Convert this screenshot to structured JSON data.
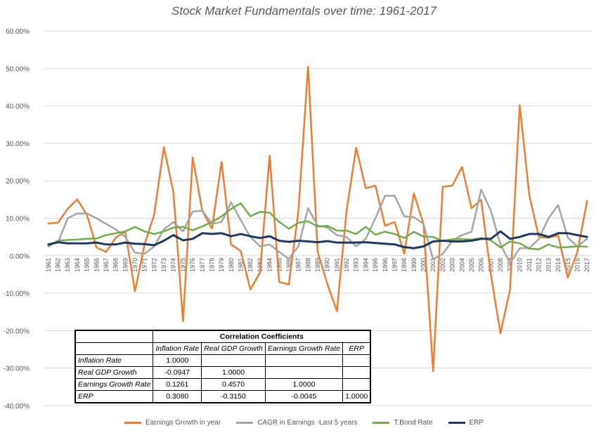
{
  "chart_data": {
    "type": "line",
    "title": "Stock Market Fundamentals over time: 1961-2017",
    "ylim": [
      -0.4,
      0.6
    ],
    "y_ticks": [
      "60.00%",
      "50.00%",
      "40.00%",
      "30.00%",
      "20.00%",
      "10.00%",
      "0.00%",
      "-10.00%",
      "-20.00%",
      "-30.00%",
      "-40.00%"
    ],
    "y_tick_values": [
      0.6,
      0.5,
      0.4,
      0.3,
      0.2,
      0.1,
      0.0,
      -0.1,
      -0.2,
      -0.3,
      -0.4
    ],
    "x": [
      "1961",
      "1962",
      "1963",
      "1964",
      "1965",
      "1966",
      "1967",
      "1968",
      "1969",
      "1970",
      "1971",
      "1972",
      "1973",
      "1974",
      "1975",
      "1976",
      "1977",
      "1978",
      "1979",
      "1980",
      "1981",
      "1982",
      "1983",
      "1984",
      "1985",
      "1986",
      "1987",
      "1988",
      "1989",
      "1990",
      "1991",
      "1992",
      "1993",
      "1994",
      "1995",
      "1996",
      "1997",
      "1998",
      "1999",
      "2000",
      "2001",
      "2002",
      "2003",
      "2004",
      "2005",
      "2006",
      "2007",
      "2008",
      "2009",
      "2010",
      "2011",
      "2012",
      "2013",
      "2014",
      "2015",
      "2016",
      "2017"
    ],
    "grid": true,
    "legend_position": "bottom",
    "series": [
      {
        "name": "Earnings Growth in year",
        "color": "#ED7D31",
        "values": [
          0.086,
          0.088,
          0.125,
          0.15,
          0.11,
          0.022,
          0.01,
          0.048,
          0.065,
          -0.095,
          0.03,
          0.11,
          0.29,
          0.17,
          -0.175,
          0.262,
          0.12,
          0.072,
          0.25,
          0.03,
          0.013,
          -0.09,
          -0.045,
          0.267,
          -0.07,
          -0.077,
          0.12,
          0.505,
          0.01,
          -0.075,
          -0.148,
          0.12,
          0.288,
          0.18,
          0.187,
          0.08,
          0.09,
          0.005,
          0.166,
          0.085,
          -0.308,
          0.184,
          0.187,
          0.237,
          0.127,
          0.149,
          -0.05,
          -0.207,
          -0.09,
          0.402,
          0.161,
          0.05,
          0.048,
          0.054,
          -0.058,
          0.01,
          0.146
        ]
      },
      {
        "name": "CAGR in Earnings -Last 5 years",
        "color": "#A5A5A5",
        "values": [
          0.03,
          0.035,
          0.1,
          0.113,
          0.113,
          0.1,
          0.085,
          0.07,
          0.05,
          0.008,
          0.005,
          0.025,
          0.07,
          0.09,
          0.065,
          0.118,
          0.12,
          0.085,
          0.09,
          0.142,
          0.095,
          0.05,
          0.025,
          0.03,
          0.01,
          -0.008,
          0.025,
          0.127,
          0.08,
          0.075,
          0.055,
          0.05,
          0.025,
          0.045,
          0.1,
          0.16,
          0.16,
          0.105,
          0.103,
          0.085,
          -0.01,
          0.005,
          0.04,
          0.055,
          0.064,
          0.177,
          0.12,
          0.03,
          -0.02,
          0.02,
          0.02,
          0.045,
          0.1,
          0.135,
          0.048,
          0.025,
          0.045
        ]
      },
      {
        "name": "T.Bond Rate",
        "color": "#70AD47",
        "values": [
          0.025,
          0.04,
          0.042,
          0.043,
          0.045,
          0.046,
          0.055,
          0.06,
          0.065,
          0.077,
          0.065,
          0.058,
          0.065,
          0.075,
          0.077,
          0.068,
          0.078,
          0.09,
          0.105,
          0.125,
          0.14,
          0.105,
          0.117,
          0.115,
          0.09,
          0.072,
          0.088,
          0.092,
          0.078,
          0.08,
          0.067,
          0.067,
          0.058,
          0.077,
          0.056,
          0.064,
          0.058,
          0.047,
          0.064,
          0.051,
          0.05,
          0.039,
          0.044,
          0.044,
          0.043,
          0.047,
          0.041,
          0.022,
          0.038,
          0.033,
          0.019,
          0.017,
          0.03,
          0.022,
          0.023,
          0.025,
          0.024
        ]
      },
      {
        "name": "ERP",
        "color": "#203864",
        "values": [
          0.03,
          0.036,
          0.033,
          0.033,
          0.033,
          0.035,
          0.03,
          0.03,
          0.035,
          0.032,
          0.031,
          0.028,
          0.04,
          0.055,
          0.041,
          0.045,
          0.06,
          0.058,
          0.06,
          0.052,
          0.058,
          0.052,
          0.047,
          0.052,
          0.04,
          0.037,
          0.04,
          0.038,
          0.036,
          0.039,
          0.035,
          0.035,
          0.035,
          0.036,
          0.034,
          0.032,
          0.03,
          0.023,
          0.02,
          0.025,
          0.038,
          0.04,
          0.038,
          0.038,
          0.04,
          0.045,
          0.045,
          0.065,
          0.045,
          0.05,
          0.058,
          0.058,
          0.05,
          0.06,
          0.06,
          0.055,
          0.05
        ]
      }
    ]
  },
  "correlation_table": {
    "caption": "Correlation Coefficients",
    "columns": [
      "Inflation Rate",
      "Real GDP Growth",
      "Earnings Growth Rate",
      "ERP"
    ],
    "rows": [
      {
        "label": "Inflation Rate",
        "cells": [
          "1.0000",
          "",
          "",
          ""
        ]
      },
      {
        "label": "Real GDP Growth",
        "cells": [
          "-0.0947",
          "1.0000",
          "",
          ""
        ]
      },
      {
        "label": "Earnings Growth Rate",
        "cells": [
          "0.1261",
          "0.4570",
          "1.0000",
          ""
        ]
      },
      {
        "label": "ERP",
        "cells": [
          "0.3080",
          "-0.3150",
          "-0.0045",
          "1.0000"
        ]
      }
    ]
  },
  "legend": [
    {
      "label": "Earnings Growth in year",
      "color": "#ED7D31"
    },
    {
      "label": "CAGR in Earnings -Last 5 years",
      "color": "#A5A5A5"
    },
    {
      "label": "T.Bond Rate",
      "color": "#70AD47"
    },
    {
      "label": "ERP",
      "color": "#203864"
    }
  ]
}
